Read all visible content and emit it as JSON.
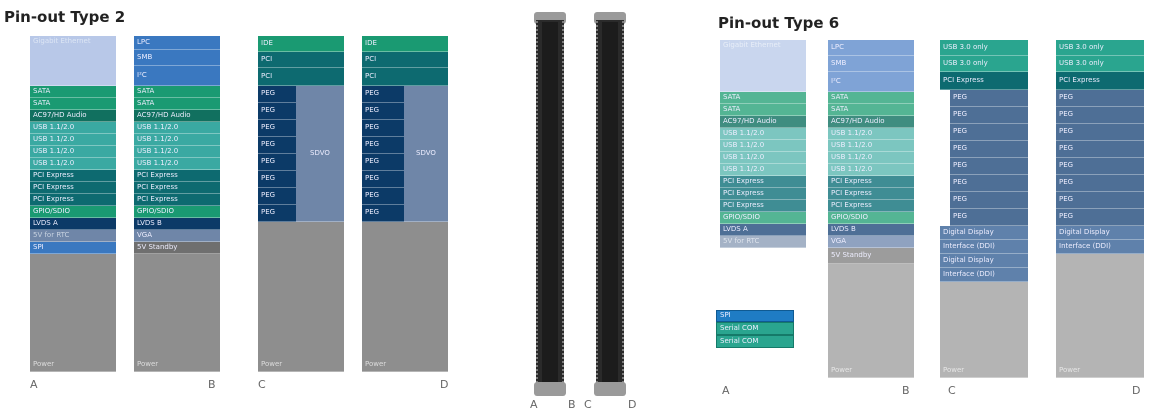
{
  "colors": {
    "blue": "#3a78c0",
    "blue_light": "#b8c8e8",
    "green": "#1a9a72",
    "green_dark": "#11705f",
    "teal": "#0d6a70",
    "cyan": "#3aa9a2",
    "navy": "#0c3a67",
    "gray": "#8e8e8e",
    "gray_blue": "#6f86a8",
    "t6_blue_light": "#c9d6ee",
    "t6_green": "#54b594",
    "t6_cyan": "#7cc6c0",
    "t6_teal": "#3f8d94",
    "t6_navy": "#4e6f96",
    "t6_gray": "#b4b4b4"
  },
  "type2": {
    "title": "Pin-out Type 2",
    "col_a": [
      "Gigabit Ethernet",
      "SATA",
      "SATA",
      "AC97/HD Audio",
      "USB 1.1/2.0",
      "USB 1.1/2.0",
      "USB 1.1/2.0",
      "USB 1.1/2.0",
      "PCI Express",
      "PCI Express",
      "PCI Express",
      "GPIO/SDIO",
      "LVDS A",
      "5V for RTC",
      "SPI",
      "Power"
    ],
    "col_b": [
      "LPC",
      "SMB",
      "I²C",
      "SATA",
      "SATA",
      "AC97/HD Audio",
      "USB 1.1/2.0",
      "USB 1.1/2.0",
      "USB 1.1/2.0",
      "USB 1.1/2.0",
      "PCI Express",
      "PCI Express",
      "PCI Express",
      "GPIO/SDIO",
      "LVDS B",
      "VGA",
      "5V Standby",
      "Power"
    ],
    "col_c": [
      "IDE",
      "PCI",
      "PCI",
      "PEG",
      "PEG",
      "PEG",
      "PEG",
      "PEG",
      "PEG",
      "PEG",
      "PEG",
      "SDVO",
      "Power"
    ],
    "col_d": [
      "IDE",
      "PCI",
      "PCI",
      "PEG",
      "PEG",
      "PEG",
      "PEG",
      "PEG",
      "PEG",
      "PEG",
      "PEG",
      "SDVO",
      "Power"
    ],
    "letters": [
      "A",
      "B",
      "C",
      "D"
    ]
  },
  "connector_letters": [
    "A",
    "B",
    "C",
    "D"
  ],
  "type6": {
    "title": "Pin-out Type 6",
    "col_a": [
      "Gigabit Ethernet",
      "SATA",
      "SATA",
      "AC97/HD Audio",
      "USB 1.1/2.0",
      "USB 1.1/2.0",
      "USB 1.1/2.0",
      "USB 1.1/2.0",
      "PCI Express",
      "PCI Express",
      "PCI Express",
      "GPIO/SDIO",
      "LVDS A",
      "5V for RTC",
      "SPI",
      "Serial COM",
      "Serial COM",
      "Power"
    ],
    "col_b": [
      "LPC",
      "SMB",
      "I²C",
      "SATA",
      "SATA",
      "AC97/HD Audio",
      "USB 1.1/2.0",
      "USB 1.1/2.0",
      "USB 1.1/2.0",
      "USB 1.1/2.0",
      "PCI Express",
      "PCI Express",
      "PCI Express",
      "GPIO/SDIO",
      "LVDS B",
      "VGA",
      "5V Standby",
      "Power"
    ],
    "col_c": [
      "USB 3.0 only",
      "USB 3.0 only",
      "PCI Express",
      "PEG",
      "PEG",
      "PEG",
      "PEG",
      "PEG",
      "PEG",
      "PEG",
      "PEG",
      "Digital Display",
      "Interface (DDI)",
      "Digital Display",
      "Interface (DDI)",
      "Power"
    ],
    "col_d": [
      "USB 3.0 only",
      "USB 3.0 only",
      "PCI Express",
      "PEG",
      "PEG",
      "PEG",
      "PEG",
      "PEG",
      "PEG",
      "PEG",
      "PEG",
      "Digital Display",
      "Interface (DDI)",
      "Power"
    ],
    "letters": [
      "A",
      "B",
      "C",
      "D"
    ]
  }
}
